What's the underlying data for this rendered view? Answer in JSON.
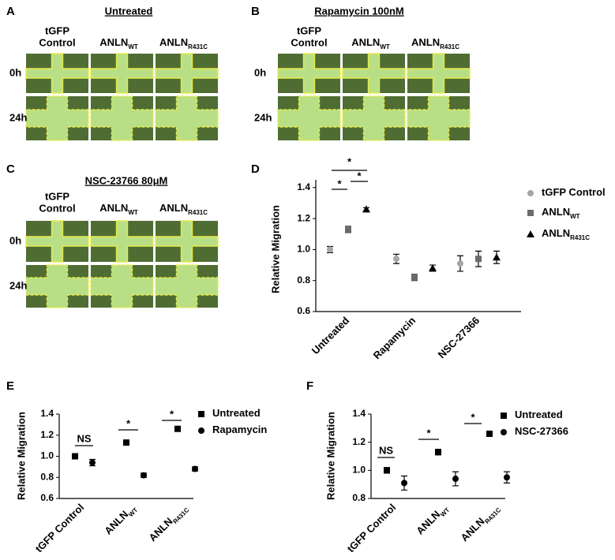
{
  "panels": [
    {
      "letter": "A",
      "title": "Untreated",
      "columns": [
        {
          "lines": [
            "tGFP",
            "Control"
          ]
        },
        {
          "base": "ANLN",
          "sub": "WT"
        },
        {
          "base": "ANLN",
          "sub": "R431C"
        }
      ],
      "rows": [
        "0h",
        "24h"
      ]
    },
    {
      "letter": "B",
      "title": "Rapamycin 100nM",
      "columns": [
        {
          "lines": [
            "tGFP",
            "Control"
          ]
        },
        {
          "base": "ANLN",
          "sub": "WT"
        },
        {
          "base": "ANLN",
          "sub": "R431C"
        }
      ],
      "rows": [
        "0h",
        "24h"
      ]
    },
    {
      "letter": "C",
      "title": "NSC-23766 80μM",
      "columns": [
        {
          "lines": [
            "tGFP",
            "Control"
          ]
        },
        {
          "base": "ANLN",
          "sub": "WT"
        },
        {
          "base": "ANLN",
          "sub": "R431C"
        }
      ],
      "rows": [
        "0h",
        "24h"
      ]
    }
  ],
  "chart_data": [
    {
      "type": "dot",
      "letter": "D",
      "y_label": "Relative Migration",
      "categories": [
        "Untreated",
        "Rapamycin",
        "NSC-27366"
      ],
      "ylim": [
        0.6,
        1.45
      ],
      "yticks": [
        0.6,
        0.8,
        {
          "value": 1,
          "label": "1.0"
        },
        1.2,
        1.4
      ],
      "series": [
        {
          "name": "tGFP Control",
          "color": "#a6a6a6",
          "marker": "circle",
          "values": [
            1.0,
            0.94,
            0.91
          ],
          "errors": [
            0.02,
            0.03,
            0.05
          ]
        },
        {
          "name": "ANLN",
          "name_sub": "WT",
          "color": "#6b6b6b",
          "marker": "square",
          "values": [
            1.13,
            0.82,
            0.94
          ],
          "errors": [
            0.02,
            0.02,
            0.05
          ]
        },
        {
          "name": "ANLN",
          "name_sub": "R431C",
          "color": "#000000",
          "marker": "triangle",
          "values": [
            1.26,
            0.88,
            0.95
          ],
          "errors": [
            0.01,
            0.02,
            0.04
          ]
        }
      ],
      "annotations": [
        {
          "text": "*"
        },
        {
          "text": "*"
        },
        {
          "text": "*"
        }
      ]
    },
    {
      "type": "dot",
      "letter": "E",
      "y_label": "Relative Migration",
      "categories": [
        "tGFP Control",
        "ANLN",
        "ANLN"
      ],
      "category_subs": [
        null,
        "WT",
        "R431C"
      ],
      "ylim": [
        0.6,
        1.4
      ],
      "yticks": [
        0.6,
        0.8,
        {
          "value": 1,
          "label": "1.0"
        },
        1.2,
        1.4
      ],
      "series": [
        {
          "name": "Untreated",
          "color": "#000000",
          "marker": "square",
          "values": [
            1.0,
            1.13,
            1.26
          ],
          "errors": [
            0.02,
            0.02,
            0.01
          ]
        },
        {
          "name": "Rapamycin",
          "color": "#000000",
          "marker": "circle",
          "values": [
            0.94,
            0.82,
            0.88
          ],
          "errors": [
            0.03,
            0.02,
            0.02
          ]
        }
      ],
      "annotations": [
        {
          "text": "NS"
        },
        {
          "text": "*"
        },
        {
          "text": "*"
        }
      ]
    },
    {
      "type": "dot",
      "letter": "F",
      "y_label": "Relative Migration",
      "categories": [
        "tGFP Control",
        "ANLN",
        "ANLN"
      ],
      "category_subs": [
        null,
        "WT",
        "R431C"
      ],
      "ylim": [
        0.8,
        1.4
      ],
      "yticks": [
        0.8,
        {
          "value": 1,
          "label": "1.0"
        },
        1.2,
        1.4
      ],
      "series": [
        {
          "name": "Untreated",
          "color": "#000000",
          "marker": "square",
          "values": [
            1.0,
            1.13,
            1.26
          ],
          "errors": [
            0.02,
            0.02,
            0.01
          ]
        },
        {
          "name": "NSC-27366",
          "color": "#000000",
          "marker": "circle",
          "values": [
            0.91,
            0.94,
            0.95
          ],
          "errors": [
            0.05,
            0.05,
            0.04
          ]
        }
      ],
      "annotations": [
        {
          "text": "NS"
        },
        {
          "text": "*"
        },
        {
          "text": "*"
        }
      ]
    }
  ]
}
